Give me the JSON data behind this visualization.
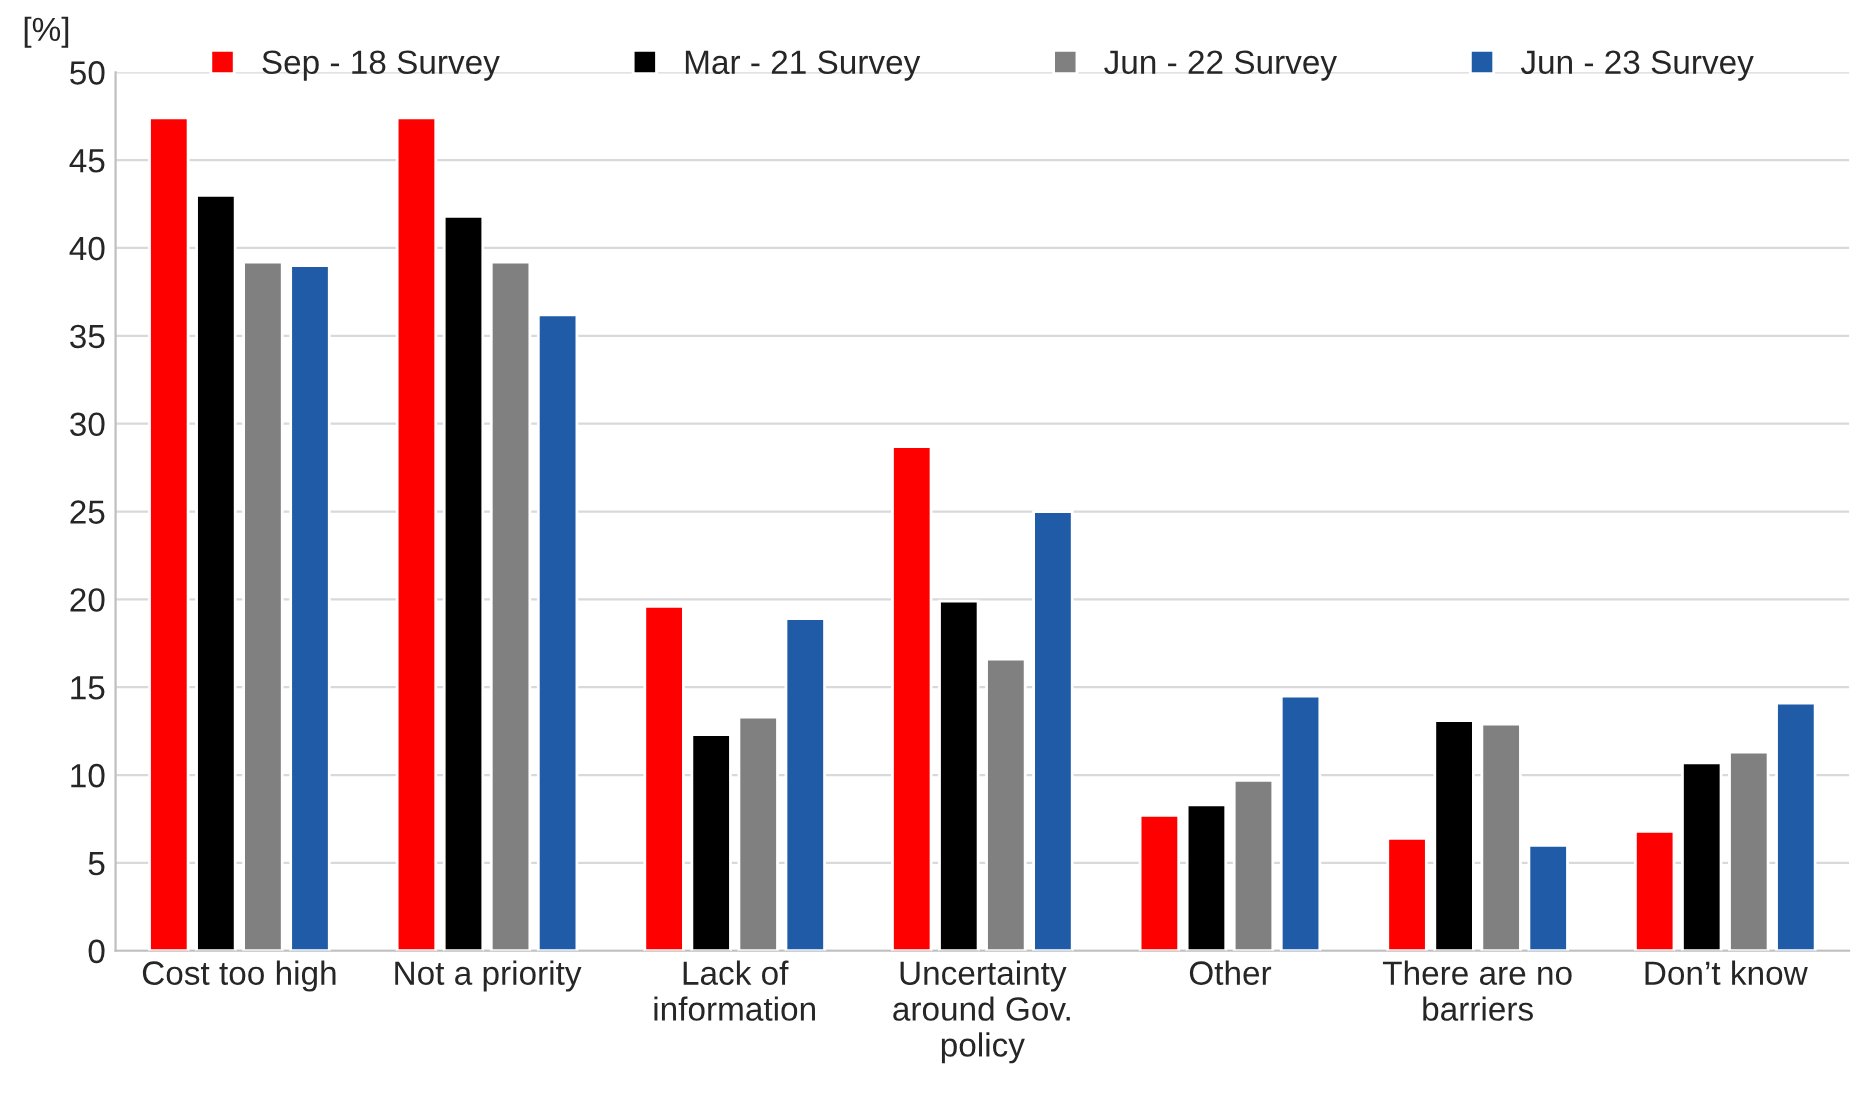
{
  "chart_data": {
    "type": "bar",
    "ylabel": "[%]",
    "categories": [
      "Cost too high",
      "Not a priority",
      "Lack of\ninformation",
      "Uncertainty\naround Gov.\npolicy",
      "Other",
      "There are no\nbarriers",
      "Don’t know"
    ],
    "series": [
      {
        "name": "Sep - 18 Survey",
        "color": "#ff0000",
        "values": [
          47.4,
          47.4,
          19.6,
          28.7,
          7.7,
          6.4,
          6.8
        ]
      },
      {
        "name": "Mar - 21 Survey",
        "color": "#000000",
        "values": [
          43.0,
          41.8,
          12.3,
          19.9,
          8.3,
          13.1,
          10.7
        ]
      },
      {
        "name": "Jun - 22 Survey",
        "color": "#808080",
        "values": [
          39.2,
          39.2,
          13.3,
          16.6,
          9.7,
          12.9,
          11.3
        ]
      },
      {
        "name": "Jun - 23 Survey",
        "color": "#1f5ba6",
        "values": [
          39.0,
          36.2,
          18.9,
          25.0,
          14.5,
          6.0,
          14.1
        ]
      }
    ],
    "ylim": [
      0,
      50
    ],
    "yticks": [
      0,
      5,
      10,
      15,
      20,
      25,
      30,
      35,
      40,
      45,
      50
    ],
    "grid": "y",
    "legend": "top"
  }
}
